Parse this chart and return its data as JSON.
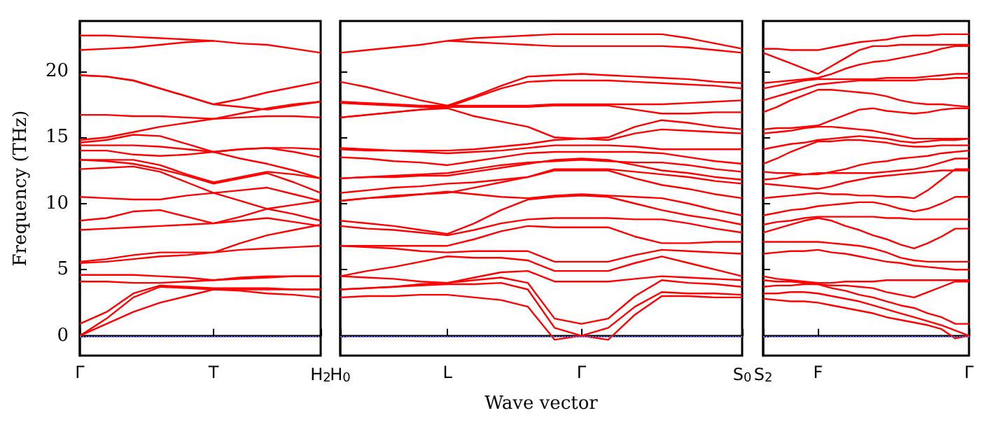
{
  "chart_data": [
    {
      "type": "line",
      "ylabel": "Frequency (THz)",
      "categories": [
        "Γ",
        null,
        null,
        null,
        null,
        "T",
        null,
        null,
        null,
        "H$_{2}$"
      ],
      "ylim": [
        -1.5,
        23.8
      ],
      "yticks": [
        0,
        5,
        10,
        15,
        20
      ],
      "ref_lines": [
        {
          "axis": "y",
          "value": 0,
          "color": "#6a6aff",
          "line_style": "dotted"
        }
      ],
      "series": [
        {
          "color": "#ff0000",
          "values": [
            0,
            0.9,
            1.8,
            2.5,
            3.0,
            3.5,
            3.4,
            3.2,
            3.1,
            2.9
          ]
        },
        {
          "color": "#ff0000",
          "values": [
            0,
            1.3,
            2.9,
            3.7,
            3.6,
            3.5,
            3.5,
            3.5,
            3.5,
            3.5
          ]
        },
        {
          "color": "#ff0000",
          "values": [
            0.9,
            1.8,
            3.2,
            3.8,
            3.7,
            3.6,
            3.6,
            3.6,
            3.5,
            3.5
          ]
        },
        {
          "color": "#ff0000",
          "values": [
            4.1,
            4.1,
            4.0,
            4.0,
            4.1,
            4.2,
            4.3,
            4.4,
            4.5,
            4.5
          ]
        },
        {
          "color": "#ff0000",
          "values": [
            4.6,
            4.6,
            4.6,
            4.5,
            4.4,
            4.2,
            4.4,
            4.5,
            4.5,
            4.5
          ]
        },
        {
          "color": "#ff0000",
          "values": [
            5.5,
            5.6,
            5.8,
            6.0,
            6.1,
            6.3,
            6.5,
            6.6,
            6.7,
            6.8
          ]
        },
        {
          "color": "#ff0000",
          "values": [
            5.6,
            5.8,
            6.1,
            6.3,
            6.3,
            6.3,
            7.0,
            7.6,
            8.0,
            8.4
          ]
        },
        {
          "color": "#ff0000",
          "values": [
            8.0,
            8.1,
            8.2,
            8.3,
            8.4,
            8.5,
            8.7,
            8.9,
            8.6,
            8.3
          ]
        },
        {
          "color": "#ff0000",
          "values": [
            8.7,
            8.9,
            9.4,
            9.5,
            9.0,
            8.5,
            9.0,
            9.6,
            9.2,
            8.7
          ]
        },
        {
          "color": "#ff0000",
          "values": [
            10.5,
            10.4,
            10.3,
            10.3,
            10.6,
            10.8,
            10.2,
            9.6,
            9.9,
            10.2
          ]
        },
        {
          "color": "#ff0000",
          "values": [
            12.6,
            12.7,
            12.8,
            12.4,
            11.6,
            10.8,
            11.0,
            11.2,
            10.7,
            10.2
          ]
        },
        {
          "color": "#ff0000",
          "values": [
            13.3,
            13.2,
            13.0,
            12.6,
            12.1,
            11.5,
            11.9,
            12.3,
            11.6,
            10.8
          ]
        },
        {
          "color": "#ff0000",
          "values": [
            13.3,
            13.3,
            13.3,
            12.9,
            12.2,
            11.6,
            12.0,
            12.4,
            12.2,
            11.9
          ]
        },
        {
          "color": "#ff0000",
          "values": [
            14.0,
            14.0,
            13.7,
            13.6,
            13.7,
            13.9,
            13.4,
            13.0,
            12.5,
            11.9
          ]
        },
        {
          "color": "#ff0000",
          "values": [
            14.4,
            14.4,
            14.4,
            14.3,
            14.1,
            13.9,
            14.1,
            14.2,
            13.9,
            13.5
          ]
        },
        {
          "color": "#ff0000",
          "values": [
            14.6,
            14.8,
            15.2,
            15.1,
            14.5,
            13.9,
            14.1,
            14.2,
            14.2,
            14.1
          ]
        },
        {
          "color": "#ff0000",
          "values": [
            14.8,
            15.0,
            15.4,
            15.8,
            16.1,
            16.4,
            16.8,
            17.2,
            17.5,
            17.7
          ]
        },
        {
          "color": "#ff0000",
          "values": [
            16.7,
            16.7,
            16.6,
            16.6,
            16.5,
            16.4,
            16.5,
            16.6,
            16.6,
            16.5
          ]
        },
        {
          "color": "#ff0000",
          "values": [
            19.7,
            19.6,
            19.3,
            18.7,
            18.1,
            17.5,
            17.3,
            17.1,
            17.4,
            17.7
          ]
        },
        {
          "color": "#ff0000",
          "values": [
            19.7,
            19.6,
            19.3,
            18.7,
            18.1,
            17.5,
            17.9,
            18.4,
            18.8,
            19.2
          ]
        },
        {
          "color": "#ff0000",
          "values": [
            21.6,
            21.7,
            21.8,
            22.0,
            22.2,
            22.3,
            22.1,
            22.0,
            21.7,
            21.4
          ]
        },
        {
          "color": "#ff0000",
          "values": [
            22.7,
            22.7,
            22.6,
            22.5,
            22.4,
            22.3,
            null,
            null,
            null,
            null
          ]
        }
      ]
    },
    {
      "type": "line",
      "xlabel": "Wave vector",
      "categories": [
        "H$_{0}$",
        null,
        null,
        null,
        "L",
        null,
        null,
        null,
        null,
        "Γ",
        null,
        null,
        null,
        null,
        null,
        "S$_{0}$"
      ],
      "ylim": [
        -1.5,
        23.8
      ],
      "yticks": [
        0,
        5,
        10,
        15,
        20
      ],
      "tick_labels": "x",
      "ref_lines": [
        {
          "axis": "y",
          "value": 0,
          "color": "#6a6aff",
          "line_style": "dotted"
        }
      ],
      "series": [
        {
          "color": "#ff0000",
          "values": [
            2.9,
            3.0,
            3.0,
            3.1,
            3.1,
            2.9,
            2.7,
            2.2,
            -0.3,
            0,
            -0.3,
            1.6,
            3.0,
            3.0,
            2.9,
            2.9
          ]
        },
        {
          "color": "#ff0000",
          "values": [
            3.5,
            3.6,
            3.7,
            3.8,
            3.9,
            3.9,
            4.0,
            3.5,
            0.6,
            0,
            0.6,
            2.2,
            3.3,
            3.2,
            3.2,
            3.1
          ]
        },
        {
          "color": "#ff0000",
          "values": [
            3.5,
            3.6,
            3.7,
            3.9,
            4.0,
            4.2,
            4.4,
            4.0,
            1.3,
            0.9,
            1.3,
            3.0,
            4.2,
            4.0,
            3.9,
            3.7
          ]
        },
        {
          "color": "#ff0000",
          "values": [
            4.5,
            4.4,
            4.3,
            4.1,
            4.0,
            4.4,
            4.8,
            4.9,
            4.1,
            4.1,
            4.1,
            4.3,
            4.5,
            4.4,
            4.3,
            4.2
          ]
        },
        {
          "color": "#ff0000",
          "values": [
            4.5,
            4.9,
            5.2,
            5.6,
            6.0,
            5.9,
            5.9,
            5.7,
            4.9,
            4.9,
            4.9,
            5.5,
            6.0,
            5.5,
            5.0,
            4.5
          ]
        },
        {
          "color": "#ff0000",
          "values": [
            6.8,
            6.7,
            6.6,
            6.4,
            6.3,
            6.4,
            6.4,
            6.4,
            5.6,
            5.6,
            5.6,
            6.1,
            6.5,
            6.4,
            6.3,
            6.2
          ]
        },
        {
          "color": "#ff0000",
          "values": [
            6.8,
            6.8,
            6.8,
            6.8,
            6.8,
            7.3,
            7.9,
            8.3,
            8.2,
            8.2,
            8.2,
            7.5,
            7.0,
            7.0,
            7.1,
            7.1
          ]
        },
        {
          "color": "#ff0000",
          "values": [
            8.3,
            8.1,
            8.0,
            7.8,
            7.6,
            8.0,
            8.5,
            8.8,
            8.9,
            8.9,
            8.9,
            8.8,
            8.8,
            8.5,
            8.1,
            7.8
          ]
        },
        {
          "color": "#ff0000",
          "values": [
            8.7,
            8.5,
            8.3,
            8.0,
            7.7,
            8.5,
            9.5,
            10.3,
            10.5,
            10.6,
            10.5,
            10.0,
            9.5,
            9.1,
            8.8,
            8.4
          ]
        },
        {
          "color": "#ff0000",
          "values": [
            10.2,
            10.4,
            10.5,
            10.7,
            10.9,
            10.7,
            10.5,
            10.4,
            10.6,
            10.7,
            10.6,
            10.5,
            10.4,
            10.0,
            9.5,
            9.1
          ]
        },
        {
          "color": "#ff0000",
          "values": [
            10.2,
            10.4,
            10.6,
            10.7,
            10.8,
            11.2,
            11.6,
            12.0,
            12.5,
            12.5,
            12.5,
            11.9,
            11.4,
            11.1,
            10.7,
            10.4
          ]
        },
        {
          "color": "#ff0000",
          "values": [
            10.8,
            11.0,
            11.2,
            11.3,
            11.5,
            11.6,
            11.8,
            12.0,
            12.6,
            12.6,
            12.6,
            12.4,
            12.2,
            12.0,
            11.7,
            11.5
          ]
        },
        {
          "color": "#ff0000",
          "values": [
            11.9,
            12.0,
            12.0,
            12.1,
            12.1,
            12.4,
            12.7,
            13.0,
            13.3,
            13.4,
            13.3,
            12.9,
            12.5,
            12.3,
            12.0,
            11.8
          ]
        },
        {
          "color": "#ff0000",
          "values": [
            11.9,
            12.0,
            12.1,
            12.2,
            12.3,
            12.6,
            12.9,
            13.1,
            13.2,
            13.3,
            13.2,
            13.1,
            13.1,
            12.9,
            12.6,
            12.4
          ]
        },
        {
          "color": "#ff0000",
          "values": [
            13.5,
            13.4,
            13.2,
            13.1,
            12.9,
            13.2,
            13.5,
            13.8,
            13.9,
            13.9,
            13.9,
            13.9,
            13.8,
            13.5,
            13.2,
            13.0
          ]
        },
        {
          "color": "#ff0000",
          "values": [
            14.1,
            14.0,
            14.0,
            13.9,
            13.8,
            13.9,
            14.0,
            14.2,
            14.4,
            14.4,
            14.4,
            14.3,
            14.1,
            14.1,
            14.1,
            14.1
          ]
        },
        {
          "color": "#ff0000",
          "values": [
            14.2,
            14.1,
            14.0,
            14.0,
            14.0,
            14.1,
            14.3,
            14.5,
            14.8,
            14.9,
            14.8,
            15.3,
            15.6,
            15.5,
            15.4,
            15.3
          ]
        },
        {
          "color": "#ff0000",
          "values": [
            16.5,
            16.7,
            16.9,
            17.1,
            17.2,
            16.6,
            16.2,
            15.8,
            15.0,
            14.9,
            15.0,
            15.8,
            16.3,
            16.1,
            15.8,
            15.6
          ]
        },
        {
          "color": "#ff0000",
          "values": [
            16.5,
            16.7,
            16.9,
            17.1,
            17.3,
            17.3,
            17.3,
            17.3,
            17.4,
            17.4,
            17.4,
            17.1,
            16.8,
            16.8,
            16.9,
            16.9
          ]
        },
        {
          "color": "#ff0000",
          "values": [
            17.7,
            17.6,
            17.5,
            17.4,
            17.4,
            17.4,
            17.4,
            17.4,
            17.5,
            17.5,
            17.5,
            17.5,
            17.5,
            17.6,
            17.7,
            17.8
          ]
        },
        {
          "color": "#ff0000",
          "values": [
            17.6,
            17.5,
            17.4,
            17.3,
            17.3,
            18.0,
            18.7,
            19.2,
            19.3,
            19.3,
            19.3,
            19.2,
            19.1,
            19.0,
            18.9,
            18.7
          ]
        },
        {
          "color": "#ff0000",
          "values": [
            19.2,
            18.8,
            18.3,
            17.8,
            17.4,
            18.1,
            18.9,
            19.6,
            19.7,
            19.8,
            19.7,
            19.6,
            19.5,
            19.4,
            19.2,
            19.1
          ]
        },
        {
          "color": "#ff0000",
          "values": [
            21.4,
            21.6,
            21.8,
            22.0,
            22.3,
            22.2,
            22.1,
            22.0,
            21.9,
            21.9,
            21.9,
            21.9,
            21.9,
            21.8,
            21.6,
            21.4
          ]
        },
        {
          "color": "#ff0000",
          "values": [
            null,
            null,
            null,
            null,
            22.3,
            22.5,
            22.6,
            22.7,
            22.8,
            22.8,
            22.8,
            22.8,
            22.8,
            22.5,
            22.1,
            21.7
          ]
        }
      ]
    },
    {
      "type": "line",
      "categories": [
        "S$_{2}$",
        null,
        null,
        null,
        "F",
        null,
        null,
        null,
        null,
        null,
        null,
        null,
        null,
        null,
        null,
        "Γ"
      ],
      "ylim": [
        -1.5,
        23.8
      ],
      "yticks": [
        0,
        5,
        10,
        15,
        20
      ],
      "tick_labels": "x",
      "ref_lines": [
        {
          "axis": "y",
          "value": 0,
          "color": "#6a6aff",
          "line_style": "dotted"
        }
      ],
      "series": [
        {
          "color": "#ff0000",
          "values": [
            2.8,
            2.7,
            2.6,
            2.6,
            2.5,
            2.3,
            2.1,
            1.9,
            1.7,
            1.4,
            1.2,
            1.0,
            0.8,
            0.5,
            -0.2,
            0
          ]
        },
        {
          "color": "#ff0000",
          "values": [
            3.2,
            3.2,
            3.3,
            3.3,
            3.2,
            3.0,
            2.8,
            2.6,
            2.3,
            2.0,
            1.7,
            1.4,
            1.1,
            0.8,
            0.4,
            0
          ]
        },
        {
          "color": "#ff0000",
          "values": [
            3.7,
            3.8,
            3.8,
            3.9,
            3.9,
            3.6,
            3.4,
            3.1,
            2.9,
            2.6,
            2.3,
            2.1,
            1.7,
            1.4,
            0.9,
            0.9
          ]
        },
        {
          "color": "#ff0000",
          "values": [
            4.2,
            4.1,
            4.1,
            4.0,
            3.9,
            3.8,
            3.8,
            3.7,
            3.6,
            3.3,
            3.1,
            2.9,
            3.3,
            3.7,
            4.1,
            4.1
          ]
        },
        {
          "color": "#ff0000",
          "values": [
            4.5,
            4.3,
            4.2,
            4.1,
            4.0,
            4.0,
            4.1,
            4.1,
            4.1,
            4.2,
            4.2,
            4.2,
            4.2,
            4.2,
            4.2,
            4.2
          ]
        },
        {
          "color": "#ff0000",
          "values": [
            6.2,
            6.3,
            6.4,
            6.4,
            6.5,
            6.3,
            6.2,
            6.0,
            5.8,
            5.6,
            5.5,
            5.3,
            5.2,
            5.1,
            5.0,
            5.0
          ]
        },
        {
          "color": "#ff0000",
          "values": [
            7.1,
            7.1,
            7.1,
            7.1,
            7.1,
            7.0,
            6.9,
            6.8,
            6.6,
            6.3,
            5.9,
            5.7,
            5.6,
            5.6,
            5.6,
            5.6
          ]
        },
        {
          "color": "#ff0000",
          "values": [
            7.8,
            8.1,
            8.4,
            8.7,
            8.9,
            8.7,
            8.3,
            8.0,
            7.6,
            7.3,
            6.9,
            6.6,
            7.0,
            7.5,
            8.1,
            8.1
          ]
        },
        {
          "color": "#ff0000",
          "values": [
            8.4,
            8.6,
            8.7,
            8.9,
            9.0,
            9.0,
            9.0,
            9.0,
            9.0,
            8.9,
            8.9,
            8.8,
            8.8,
            8.8,
            8.8,
            8.8
          ]
        },
        {
          "color": "#ff0000",
          "values": [
            9.1,
            9.3,
            9.5,
            9.6,
            9.8,
            9.9,
            10.0,
            10.1,
            10.1,
            9.9,
            9.6,
            9.4,
            9.6,
            10.0,
            10.5,
            10.5
          ]
        },
        {
          "color": "#ff0000",
          "values": [
            10.4,
            10.5,
            10.6,
            10.7,
            10.8,
            10.7,
            10.7,
            10.6,
            10.6,
            10.5,
            10.5,
            10.4,
            11.0,
            11.8,
            12.6,
            12.6
          ]
        },
        {
          "color": "#ff0000",
          "values": [
            11.5,
            11.4,
            11.3,
            11.2,
            11.1,
            11.3,
            11.6,
            11.8,
            12.0,
            12.1,
            12.2,
            12.3,
            12.4,
            12.5,
            12.5,
            12.5
          ]
        },
        {
          "color": "#ff0000",
          "values": [
            11.8,
            11.9,
            12.1,
            12.2,
            12.3,
            12.3,
            12.3,
            12.3,
            12.3,
            12.4,
            12.5,
            12.6,
            12.8,
            13.1,
            13.4,
            13.4
          ]
        },
        {
          "color": "#ff0000",
          "values": [
            12.4,
            12.3,
            12.3,
            12.2,
            12.2,
            12.4,
            12.6,
            12.9,
            13.1,
            13.2,
            13.4,
            13.5,
            13.6,
            13.8,
            13.9,
            14.0
          ]
        },
        {
          "color": "#ff0000",
          "values": [
            13.0,
            13.4,
            13.9,
            14.3,
            14.7,
            14.7,
            14.8,
            14.8,
            14.7,
            14.6,
            14.4,
            14.3,
            14.3,
            14.4,
            14.4,
            14.4
          ]
        },
        {
          "color": "#ff0000",
          "values": [
            14.1,
            14.3,
            14.5,
            14.6,
            14.8,
            14.9,
            15.0,
            15.1,
            15.0,
            14.9,
            14.7,
            14.6,
            14.7,
            14.8,
            14.8,
            14.9
          ]
        },
        {
          "color": "#ff0000",
          "values": [
            15.3,
            15.4,
            15.5,
            15.7,
            15.8,
            15.8,
            15.7,
            15.6,
            15.5,
            15.3,
            15.1,
            14.9,
            14.9,
            14.9,
            14.9,
            14.9
          ]
        },
        {
          "color": "#ff0000",
          "values": [
            15.6,
            15.7,
            15.7,
            15.8,
            15.9,
            16.3,
            16.7,
            17.1,
            17.2,
            17.0,
            16.9,
            16.8,
            16.9,
            17.1,
            17.2,
            17.2
          ]
        },
        {
          "color": "#ff0000",
          "values": [
            16.9,
            17.3,
            17.8,
            18.2,
            18.6,
            18.6,
            18.5,
            18.4,
            18.3,
            18.1,
            17.8,
            17.6,
            17.5,
            17.5,
            17.4,
            17.3
          ]
        },
        {
          "color": "#ff0000",
          "values": [
            17.8,
            18.1,
            18.4,
            18.7,
            19.0,
            19.1,
            19.2,
            19.3,
            19.3,
            19.3,
            19.3,
            19.3,
            19.4,
            19.4,
            19.5,
            19.5
          ]
        },
        {
          "color": "#ff0000",
          "values": [
            18.7,
            18.9,
            19.1,
            19.3,
            19.4,
            19.4,
            19.4,
            19.4,
            19.4,
            19.5,
            19.5,
            19.5,
            19.6,
            19.7,
            19.8,
            19.8
          ]
        },
        {
          "color": "#ff0000",
          "values": [
            19.1,
            19.2,
            19.3,
            19.4,
            19.5,
            19.8,
            20.2,
            20.5,
            20.7,
            20.8,
            21.0,
            21.2,
            21.4,
            21.7,
            21.9,
            21.9
          ]
        },
        {
          "color": "#ff0000",
          "values": [
            21.4,
            21.0,
            20.6,
            20.2,
            19.8,
            20.4,
            21.0,
            21.6,
            21.9,
            21.9,
            22.0,
            22.0,
            22.0,
            22.0,
            22.0,
            22.0
          ]
        },
        {
          "color": "#ff0000",
          "values": [
            21.7,
            21.7,
            21.6,
            21.6,
            21.6,
            21.8,
            22.0,
            22.2,
            22.3,
            22.4,
            22.6,
            22.7,
            22.7,
            22.8,
            22.8,
            22.8
          ]
        }
      ]
    }
  ]
}
